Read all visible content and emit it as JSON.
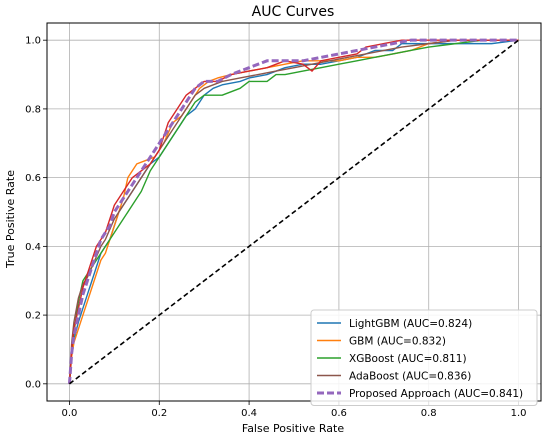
{
  "chart_data": {
    "type": "line",
    "title": "AUC Curves",
    "xlabel": "False Positive Rate",
    "ylabel": "True Positive Rate",
    "xlim": [
      -0.05,
      1.05
    ],
    "ylim": [
      -0.05,
      1.05
    ],
    "xticks": [
      "0.0",
      "0.2",
      "0.4",
      "0.6",
      "0.8",
      "1.0"
    ],
    "yticks": [
      "0.0",
      "0.2",
      "0.4",
      "0.6",
      "0.8",
      "1.0"
    ],
    "grid": true,
    "legend_position": "lower-right",
    "series": [
      {
        "name": "LightGBM (AUC=0.824)",
        "color": "#1f77b4",
        "style": "solid",
        "x": [
          0,
          0.005,
          0.01,
          0.02,
          0.03,
          0.04,
          0.05,
          0.06,
          0.07,
          0.08,
          0.09,
          0.1,
          0.11,
          0.12,
          0.14,
          0.16,
          0.18,
          0.2,
          0.22,
          0.24,
          0.25,
          0.26,
          0.28,
          0.3,
          0.32,
          0.34,
          0.38,
          0.4,
          0.44,
          0.48,
          0.52,
          0.56,
          0.6,
          0.64,
          0.68,
          0.72,
          0.74,
          0.78,
          0.82,
          0.86,
          0.9,
          0.94,
          1.0
        ],
        "y": [
          0,
          0.09,
          0.13,
          0.18,
          0.22,
          0.26,
          0.3,
          0.34,
          0.38,
          0.4,
          0.42,
          0.46,
          0.5,
          0.52,
          0.56,
          0.6,
          0.64,
          0.66,
          0.7,
          0.74,
          0.76,
          0.78,
          0.8,
          0.84,
          0.86,
          0.87,
          0.88,
          0.89,
          0.9,
          0.92,
          0.93,
          0.93,
          0.94,
          0.95,
          0.97,
          0.97,
          0.99,
          0.99,
          0.99,
          0.99,
          0.99,
          0.99,
          1.0
        ]
      },
      {
        "name": "GBM (AUC=0.832)",
        "color": "#ff7f0e",
        "style": "solid",
        "x": [
          0,
          0.005,
          0.01,
          0.02,
          0.03,
          0.04,
          0.05,
          0.06,
          0.07,
          0.08,
          0.09,
          0.1,
          0.11,
          0.12,
          0.13,
          0.15,
          0.17,
          0.19,
          0.21,
          0.23,
          0.25,
          0.27,
          0.29,
          0.31,
          0.33,
          0.36,
          0.4,
          0.44,
          0.48,
          0.52,
          0.56,
          0.6,
          0.64,
          0.68,
          0.72,
          0.76,
          0.8,
          0.86,
          0.92,
          1.0
        ],
        "y": [
          0,
          0.08,
          0.12,
          0.16,
          0.2,
          0.24,
          0.28,
          0.32,
          0.36,
          0.38,
          0.42,
          0.46,
          0.5,
          0.54,
          0.6,
          0.64,
          0.65,
          0.66,
          0.7,
          0.76,
          0.78,
          0.82,
          0.86,
          0.88,
          0.89,
          0.9,
          0.91,
          0.92,
          0.93,
          0.94,
          0.94,
          0.94,
          0.95,
          0.95,
          0.96,
          0.97,
          0.99,
          1.0,
          1.0,
          1.0
        ]
      },
      {
        "name": "XGBoost (AUC=0.811)",
        "color": "#2ca02c",
        "style": "solid",
        "x": [
          0,
          0.005,
          0.01,
          0.02,
          0.03,
          0.04,
          0.05,
          0.06,
          0.08,
          0.1,
          0.12,
          0.14,
          0.16,
          0.18,
          0.2,
          0.22,
          0.24,
          0.26,
          0.28,
          0.3,
          0.34,
          0.38,
          0.4,
          0.44,
          0.46,
          0.48,
          0.52,
          0.56,
          0.6,
          0.64,
          0.68,
          0.72,
          0.76,
          0.8,
          0.86,
          0.92,
          1.0
        ],
        "y": [
          0,
          0.1,
          0.15,
          0.24,
          0.3,
          0.32,
          0.34,
          0.36,
          0.4,
          0.44,
          0.48,
          0.52,
          0.56,
          0.62,
          0.66,
          0.7,
          0.74,
          0.78,
          0.82,
          0.84,
          0.84,
          0.86,
          0.88,
          0.88,
          0.9,
          0.9,
          0.91,
          0.92,
          0.93,
          0.94,
          0.95,
          0.96,
          0.97,
          0.98,
          0.99,
          1.0,
          1.0
        ]
      },
      {
        "name": "AdaBoost (AUC=0.836)",
        "color": "#8c564b",
        "style": "solid",
        "x": [
          0,
          0.005,
          0.01,
          0.02,
          0.03,
          0.04,
          0.05,
          0.06,
          0.07,
          0.08,
          0.09,
          0.1,
          0.12,
          0.14,
          0.16,
          0.18,
          0.2,
          0.22,
          0.24,
          0.26,
          0.28,
          0.3,
          0.34,
          0.38,
          0.42,
          0.46,
          0.5,
          0.54,
          0.58,
          0.62,
          0.66,
          0.7,
          0.74,
          0.8,
          0.86,
          0.92,
          1.0
        ],
        "y": [
          0,
          0.12,
          0.18,
          0.25,
          0.29,
          0.31,
          0.34,
          0.37,
          0.4,
          0.42,
          0.45,
          0.48,
          0.52,
          0.56,
          0.6,
          0.64,
          0.68,
          0.72,
          0.76,
          0.8,
          0.84,
          0.86,
          0.88,
          0.89,
          0.9,
          0.91,
          0.92,
          0.93,
          0.94,
          0.95,
          0.96,
          0.97,
          0.98,
          0.99,
          1.0,
          1.0,
          1.0
        ]
      },
      {
        "name": "red",
        "color": "#d62728",
        "style": "solid",
        "x": [
          0,
          0.005,
          0.01,
          0.02,
          0.03,
          0.04,
          0.05,
          0.06,
          0.07,
          0.08,
          0.09,
          0.1,
          0.11,
          0.12,
          0.13,
          0.14,
          0.16,
          0.18,
          0.2,
          0.22,
          0.24,
          0.26,
          0.28,
          0.3,
          0.33,
          0.36,
          0.4,
          0.44,
          0.48,
          0.52,
          0.54,
          0.56,
          0.6,
          0.64,
          0.66,
          0.7,
          0.74,
          0.78,
          0.84,
          0.9,
          1.0
        ],
        "y": [
          0,
          0.1,
          0.16,
          0.22,
          0.28,
          0.32,
          0.36,
          0.4,
          0.42,
          0.44,
          0.48,
          0.52,
          0.54,
          0.56,
          0.58,
          0.6,
          0.62,
          0.64,
          0.68,
          0.76,
          0.8,
          0.84,
          0.86,
          0.88,
          0.88,
          0.9,
          0.91,
          0.92,
          0.94,
          0.93,
          0.91,
          0.94,
          0.95,
          0.96,
          0.98,
          0.99,
          1.0,
          1.0,
          1.0,
          1.0,
          1.0
        ]
      },
      {
        "name": "Proposed Approach (AUC=0.841)",
        "color": "#9467bd",
        "style": "dashed",
        "x": [
          0,
          0.005,
          0.01,
          0.02,
          0.03,
          0.04,
          0.05,
          0.06,
          0.07,
          0.08,
          0.09,
          0.1,
          0.12,
          0.14,
          0.16,
          0.18,
          0.2,
          0.22,
          0.24,
          0.26,
          0.28,
          0.3,
          0.33,
          0.36,
          0.4,
          0.44,
          0.48,
          0.52,
          0.56,
          0.6,
          0.64,
          0.68,
          0.72,
          0.76,
          0.82,
          0.88,
          0.94,
          1.0
        ],
        "y": [
          0,
          0.09,
          0.14,
          0.2,
          0.26,
          0.3,
          0.34,
          0.38,
          0.42,
          0.44,
          0.46,
          0.5,
          0.54,
          0.58,
          0.62,
          0.66,
          0.7,
          0.74,
          0.78,
          0.82,
          0.86,
          0.88,
          0.88,
          0.9,
          0.92,
          0.94,
          0.94,
          0.94,
          0.95,
          0.96,
          0.97,
          0.98,
          0.99,
          1.0,
          1.0,
          1.0,
          1.0,
          1.0
        ]
      },
      {
        "name": "diagonal",
        "color": "#000000",
        "style": "dashed",
        "x": [
          0,
          1
        ],
        "y": [
          0,
          1
        ]
      }
    ],
    "legend": [
      {
        "label": "LightGBM (AUC=0.824)",
        "color": "#1f77b4",
        "style": "solid"
      },
      {
        "label": "GBM (AUC=0.832)",
        "color": "#ff7f0e",
        "style": "solid"
      },
      {
        "label": "XGBoost (AUC=0.811)",
        "color": "#2ca02c",
        "style": "solid"
      },
      {
        "label": "AdaBoost (AUC=0.836)",
        "color": "#8c564b",
        "style": "solid"
      },
      {
        "label": "Proposed Approach (AUC=0.841)",
        "color": "#9467bd",
        "style": "dashed"
      }
    ]
  }
}
